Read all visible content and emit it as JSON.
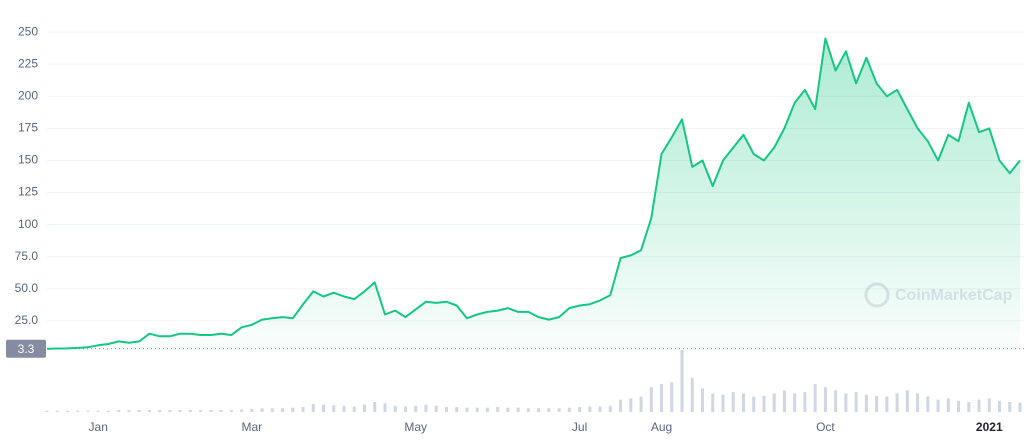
{
  "chart_data": {
    "type": "area",
    "color": "#16c784",
    "categories": [
      null,
      null,
      null,
      null,
      null,
      "Jan",
      null,
      null,
      null,
      null,
      null,
      null,
      null,
      null,
      null,
      null,
      null,
      null,
      null,
      null,
      "Mar",
      null,
      null,
      null,
      null,
      null,
      null,
      null,
      null,
      null,
      null,
      null,
      null,
      null,
      null,
      null,
      "May",
      null,
      null,
      null,
      null,
      null,
      null,
      null,
      null,
      null,
      null,
      null,
      null,
      null,
      null,
      null,
      "Jul",
      null,
      null,
      null,
      null,
      null,
      null,
      null,
      "Aug",
      null,
      null,
      null,
      null,
      null,
      null,
      null,
      null,
      null,
      null,
      null,
      null,
      null,
      null,
      null,
      "Oct",
      null,
      null,
      null,
      null,
      null,
      null,
      null,
      null,
      null,
      null,
      null,
      null,
      null,
      null,
      null,
      "2021",
      null,
      null,
      null
    ],
    "values": [
      3.3,
      3.5,
      3.6,
      4,
      4.5,
      6,
      7,
      9,
      8,
      9,
      15,
      13,
      13,
      15,
      15,
      14,
      14,
      15,
      14,
      20,
      22,
      26,
      27,
      28,
      27,
      38,
      48,
      44,
      47,
      44,
      42,
      48,
      55,
      30,
      33,
      28,
      34,
      40,
      39,
      40,
      37,
      27,
      30,
      32,
      33,
      35,
      32,
      32,
      28,
      26,
      28,
      35,
      37,
      38,
      41,
      45,
      74,
      76,
      80,
      105,
      155,
      168,
      182,
      145,
      150,
      130,
      150,
      160,
      170,
      155,
      150,
      160,
      175,
      195,
      205,
      190,
      245,
      220,
      235,
      210,
      230,
      210,
      200,
      205,
      190,
      175,
      165,
      150,
      170,
      165,
      195,
      172,
      175,
      150,
      140,
      150
    ],
    "volume": [
      2,
      2,
      2,
      2,
      2,
      2,
      2,
      3,
      3,
      3,
      3,
      3,
      3,
      3,
      3,
      3,
      3,
      3,
      3,
      4,
      5,
      6,
      6,
      6,
      7,
      8,
      13,
      12,
      11,
      10,
      9,
      12,
      16,
      14,
      10,
      9,
      10,
      12,
      10,
      8,
      8,
      7,
      7,
      7,
      8,
      7,
      7,
      6,
      6,
      6,
      6,
      7,
      8,
      9,
      9,
      10,
      20,
      22,
      25,
      40,
      45,
      48,
      100,
      55,
      38,
      30,
      28,
      32,
      30,
      25,
      26,
      30,
      35,
      30,
      32,
      45,
      40,
      35,
      30,
      32,
      28,
      26,
      25,
      30,
      35,
      30,
      25,
      20,
      22,
      18,
      16,
      20,
      22,
      18,
      16,
      15
    ],
    "ylim": [
      0,
      275
    ],
    "yticks": [
      {
        "value": 25,
        "label": "25.0"
      },
      {
        "value": 50,
        "label": "50.0"
      },
      {
        "value": 75,
        "label": "75.0"
      },
      100,
      125,
      150,
      175,
      200,
      225,
      250
    ],
    "grid": true,
    "baseline": 3.3,
    "watermark": "CoinMarketCap"
  }
}
